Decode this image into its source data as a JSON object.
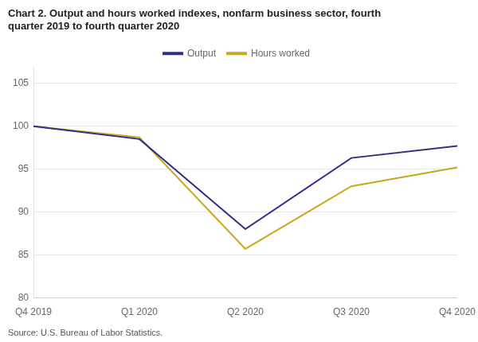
{
  "chart_data": {
    "type": "line",
    "title": "Chart 2. Output and hours worked indexes, nonfarm business sector, fourth\nquarter 2019 to fourth quarter 2020",
    "source": "Source: U.S. Bureau of Labor Statistics.",
    "categories": [
      "Q4 2019",
      "Q1 2020",
      "Q2 2020",
      "Q3 2020",
      "Q4 2020"
    ],
    "series": [
      {
        "name": "Output",
        "color": "#2e2e8b",
        "values": [
          100.0,
          98.5,
          88.0,
          96.3,
          97.7
        ]
      },
      {
        "name": "Hours worked",
        "color": "#c8a820",
        "values": [
          100.0,
          98.7,
          85.7,
          93.0,
          95.2
        ]
      }
    ],
    "ylim": [
      80,
      107
    ],
    "yticks": [
      80,
      85,
      90,
      95,
      100,
      105
    ],
    "grid": true,
    "legend": "top"
  }
}
